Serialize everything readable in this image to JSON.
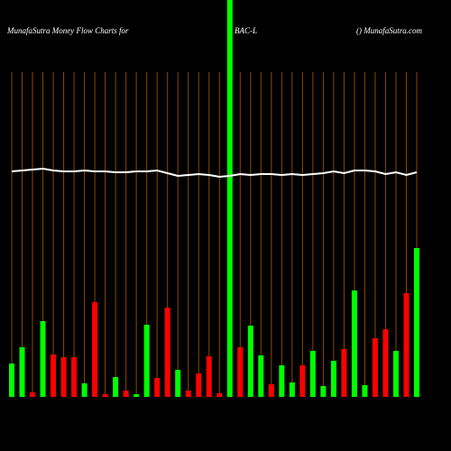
{
  "chart_data": {
    "type": "bar",
    "title": "MunafaSutra  Money Flow  Charts for",
    "subtitle": "BAC-L",
    "source": "() MunafaSutra.com",
    "ylim": [
      0,
      440
    ],
    "grid": true,
    "grid_color": "#8a4a00",
    "values": [
      37,
      55,
      5,
      84,
      47,
      44,
      44,
      15,
      105,
      3,
      22,
      7,
      3,
      80,
      21,
      99,
      30,
      7,
      26,
      45,
      4,
      440,
      55,
      79,
      46,
      14,
      35,
      16,
      35,
      51,
      12,
      40,
      53,
      118,
      13,
      65,
      75,
      51,
      115,
      165
    ],
    "colors": [
      "#00ff00",
      "#00ff00",
      "#ff0000",
      "#00ff00",
      "#ff0000",
      "#ff0000",
      "#ff0000",
      "#00ff00",
      "#ff0000",
      "#ff0000",
      "#00ff00",
      "#ff0000",
      "#00ff00",
      "#00ff00",
      "#ff0000",
      "#ff0000",
      "#00ff00",
      "#ff0000",
      "#ff0000",
      "#ff0000",
      "#ff0000",
      "#00ff00",
      "#ff0000",
      "#00ff00",
      "#00ff00",
      "#ff0000",
      "#00ff00",
      "#00ff00",
      "#ff0000",
      "#00ff00",
      "#00ff00",
      "#00ff00",
      "#ff0000",
      "#00ff00",
      "#00ff00",
      "#ff0000",
      "#ff0000",
      "#00ff00",
      "#ff0000",
      "#00ff00"
    ],
    "line": {
      "color": "#ffffff",
      "values": [
        250,
        251,
        252,
        253,
        251,
        250,
        250,
        251,
        250,
        250,
        249,
        249,
        250,
        250,
        251,
        248,
        245,
        246,
        247,
        246,
        244,
        245,
        247,
        246,
        247,
        247,
        246,
        247,
        246,
        247,
        248,
        250,
        248,
        251,
        251,
        250,
        247,
        249,
        246,
        249
      ]
    }
  }
}
